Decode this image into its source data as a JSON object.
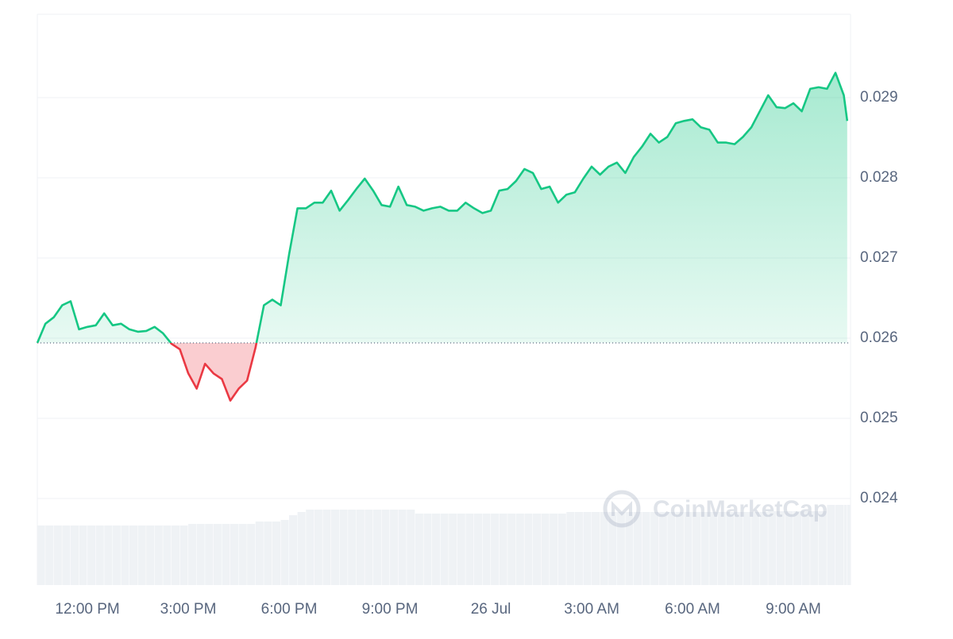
{
  "chart_data": {
    "type": "line",
    "watermark": "CoinMarketCap",
    "x": [
      10.51,
      10.75,
      11,
      11.25,
      11.5,
      11.75,
      12,
      12.25,
      12.5,
      12.75,
      13,
      13.25,
      13.5,
      13.75,
      14,
      14.25,
      14.5,
      14.75,
      15,
      15.25,
      15.5,
      15.75,
      16,
      16.25,
      16.5,
      16.75,
      17,
      17.25,
      17.5,
      17.75,
      18,
      18.25,
      18.5,
      18.75,
      19,
      19.25,
      19.5,
      19.75,
      20,
      20.25,
      20.5,
      20.75,
      21,
      21.25,
      21.5,
      21.75,
      22,
      22.25,
      22.5,
      22.75,
      23,
      23.25,
      23.5,
      23.75,
      24,
      24.25,
      24.5,
      24.75,
      25,
      25.25,
      25.5,
      25.75,
      26,
      26.25,
      26.5,
      26.75,
      27,
      27.25,
      27.5,
      27.75,
      28,
      28.25,
      28.5,
      28.75,
      29,
      29.25,
      29.5,
      29.75,
      30,
      30.25,
      30.5,
      30.75,
      31,
      31.25,
      31.5,
      31.75,
      32,
      32.25,
      32.5,
      32.75,
      33,
      33.25,
      33.5,
      33.75,
      34,
      34.25,
      34.5,
      34.6
    ],
    "series": [
      {
        "color": "#16c784",
        "below_color": "#ea3943",
        "values": [
          0.02594,
          0.02618,
          0.02626,
          0.02641,
          0.02646,
          0.02611,
          0.02614,
          0.02616,
          0.02631,
          0.02616,
          0.02618,
          0.02611,
          0.02608,
          0.02609,
          0.02614,
          0.02606,
          0.02593,
          0.02586,
          0.02556,
          0.02537,
          0.02568,
          0.02556,
          0.02549,
          0.02522,
          0.02537,
          0.02547,
          0.02588,
          0.02641,
          0.02648,
          0.02641,
          0.02705,
          0.02762,
          0.02762,
          0.02769,
          0.02769,
          0.02784,
          0.02759,
          0.02772,
          0.02786,
          0.02799,
          0.02784,
          0.02766,
          0.02764,
          0.02789,
          0.02766,
          0.02764,
          0.02759,
          0.02762,
          0.02764,
          0.02759,
          0.02759,
          0.02769,
          0.02762,
          0.02756,
          0.02759,
          0.02784,
          0.02786,
          0.02796,
          0.02811,
          0.02806,
          0.02786,
          0.02789,
          0.02769,
          0.02779,
          0.02782,
          0.02799,
          0.02814,
          0.02804,
          0.02814,
          0.02819,
          0.02806,
          0.02826,
          0.02839,
          0.02855,
          0.02844,
          0.02851,
          0.02868,
          0.02871,
          0.02873,
          0.02863,
          0.0286,
          0.02844,
          0.02844,
          0.02842,
          0.02851,
          0.02863,
          0.02883,
          0.02903,
          0.02888,
          0.02887,
          0.02893,
          0.02883,
          0.02911,
          0.02913,
          0.02911,
          0.02931,
          0.02903,
          0.02871
        ]
      }
    ],
    "volume": {
      "color": "#eff2f5",
      "values": [
        75,
        75,
        75,
        75,
        75,
        75,
        75,
        75,
        75,
        75,
        75,
        75,
        75,
        75,
        75,
        75,
        75,
        75,
        77,
        77,
        77,
        77,
        77,
        77,
        77,
        77,
        80,
        80,
        80,
        82,
        88,
        92,
        95,
        95,
        95,
        95,
        95,
        95,
        95,
        95,
        95,
        95,
        95,
        95,
        95,
        90,
        90,
        90,
        90,
        90,
        90,
        90,
        90,
        90,
        90,
        90,
        90,
        90,
        90,
        90,
        90,
        90,
        90,
        92,
        92,
        92,
        92,
        92,
        92,
        92,
        92,
        92,
        92,
        92,
        92,
        92,
        92,
        92,
        92,
        92,
        92,
        92,
        92,
        92,
        92,
        92,
        92,
        93,
        93,
        93,
        93,
        93,
        93,
        93,
        101,
        101,
        101,
        101
      ]
    },
    "xlim": [
      10.51,
      34.7
    ],
    "xticks": [
      {
        "value": 12,
        "label": "12:00 PM"
      },
      {
        "value": 15,
        "label": "3:00 PM"
      },
      {
        "value": 18,
        "label": "6:00 PM"
      },
      {
        "value": 21,
        "label": "9:00 PM"
      },
      {
        "value": 24,
        "label": "26 Jul"
      },
      {
        "value": 27,
        "label": "3:00 AM"
      },
      {
        "value": 30,
        "label": "6:00 AM"
      },
      {
        "value": 33,
        "label": "9:00 AM"
      }
    ],
    "ylim": [
      0.02292,
      0.03004
    ],
    "yticks": [
      0.024,
      0.025,
      0.026,
      0.027,
      0.028,
      0.029
    ],
    "grid": true
  }
}
